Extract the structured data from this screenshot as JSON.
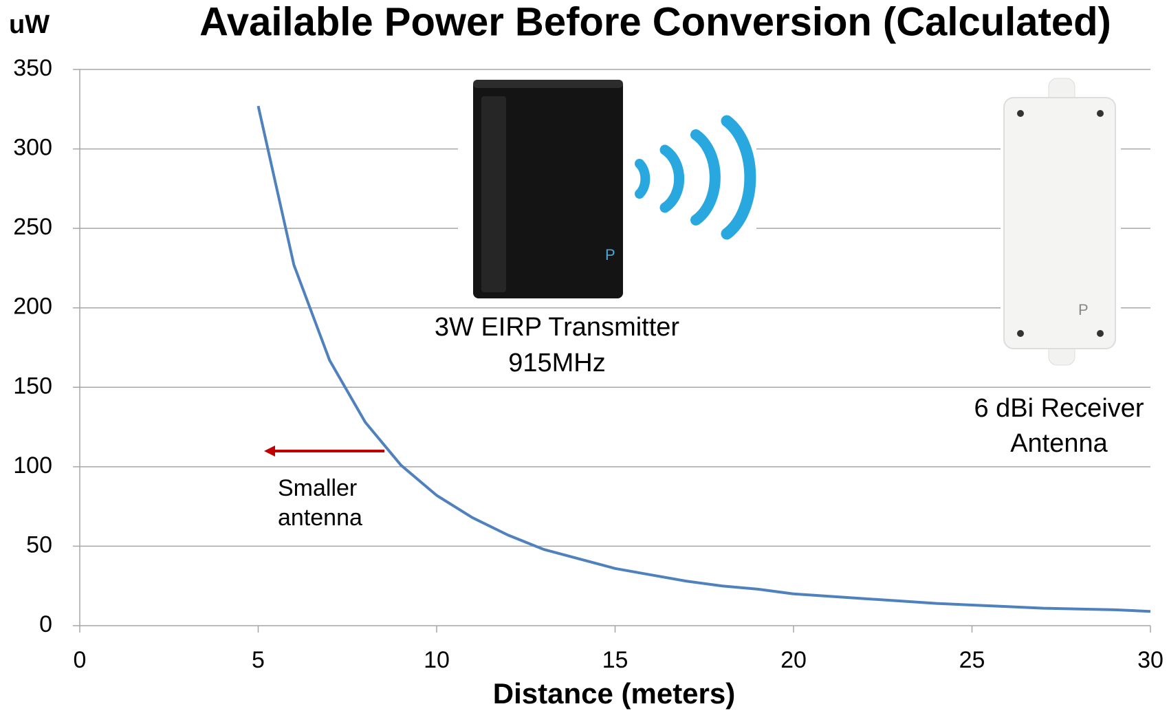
{
  "chart_data": {
    "type": "line",
    "title": "Available Power Before Conversion (Calculated)",
    "y_unit": "uW",
    "x_label": "Distance (meters)",
    "x": [
      5,
      6,
      7,
      8,
      9,
      10,
      11,
      12,
      13,
      14,
      15,
      16,
      17,
      18,
      19,
      20,
      21,
      22,
      23,
      24,
      25,
      26,
      27,
      28,
      29,
      30
    ],
    "values": [
      327,
      227,
      167,
      128,
      101,
      82,
      68,
      57,
      48,
      42,
      36,
      32,
      28,
      25,
      23,
      20,
      18.5,
      17,
      15.5,
      14,
      13,
      12,
      11,
      10.5,
      10,
      9
    ],
    "color": "#4f81bd",
    "xlim": [
      0,
      30
    ],
    "xticks": [
      0,
      5,
      10,
      15,
      20,
      25,
      30
    ],
    "ylim": [
      0,
      350
    ],
    "yticks": [
      0,
      50,
      100,
      150,
      200,
      250,
      300,
      350
    ],
    "grid": true,
    "annotations": {
      "transmitter": [
        "3W EIRP Transmitter",
        "915MHz"
      ],
      "receiver": [
        "6 dBi Receiver",
        "Antenna"
      ],
      "arrow": [
        "Smaller",
        "antenna"
      ]
    }
  }
}
